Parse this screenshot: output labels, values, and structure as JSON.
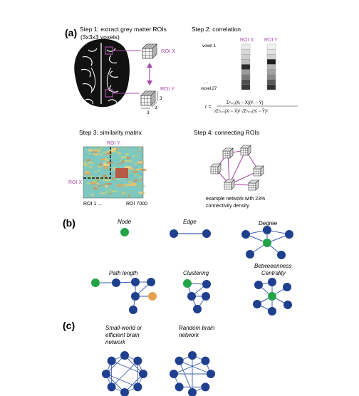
{
  "panels": {
    "a": "(a)",
    "b": "(b)",
    "c": "(c)"
  },
  "step1": {
    "title": "Step 1: extract grey matter ROIs",
    "subtitle": "(3x3x3 voxels)",
    "roi_x": "ROI X",
    "roi_y": "ROI Y",
    "dim_a": "3",
    "dim_b": "3",
    "dim_c": "3"
  },
  "step2": {
    "title": "Step 2: correlation",
    "roi_x": "ROI X",
    "roi_y": "ROI Y",
    "voxel_first": "voxel 1",
    "ellipsis": "...",
    "voxel_last": "voxel 27",
    "formula_lhs": "r =",
    "formula_num": "Σⁿᵢ₌₁(Xᵢ − X̄)(Yᵢ − Ȳ)",
    "formula_den": "√Σⁿᵢ₌₁(Xᵢ − X̄)² √Σⁿᵢ₌₁(Yᵢ − Ȳ)²",
    "colors": {
      "roi_label": "#a64ca6",
      "bar_x": [
        "#ececec",
        "#d9d9d9",
        "#cfcfcf",
        "#bdbdbd",
        "#2a2a2a",
        "#9a9a9a",
        "#7a7a7a",
        "#4f4f4f",
        "#3a3a3a"
      ],
      "bar_y": [
        "#f2f2f2",
        "#e2e2e2",
        "#d0d0d0",
        "#1f1f1f",
        "#b5b5b5",
        "#a0a0a0",
        "#8a8a8a",
        "#5a5a5a",
        "#333333"
      ]
    }
  },
  "step3": {
    "title": "Step 3: similarity matrix",
    "roi_y": "ROI Y",
    "roi_x": "ROI X",
    "axis_start": "ROI 1 ...",
    "axis_end": "ROI 7000"
  },
  "step4": {
    "title": "Step 4: connecting ROIs",
    "caption_line1": "example network with 23%",
    "caption_line2": "connectivity density"
  },
  "section_b": {
    "node": "Node",
    "edge": "Edge",
    "degree": "Degree",
    "path_length": "Path length",
    "clustering": "Clustering",
    "betweenness_line1": "Betweeenness",
    "betweenness_line2": "Centrality"
  },
  "section_c": {
    "small_world_line1": "Small-world or",
    "small_world_line2": "efficient brain",
    "small_world_line3": "network",
    "random_line1": "Random brain",
    "random_line2": "network"
  },
  "colors": {
    "node_blue": "#1f3f8f",
    "node_green": "#22a447",
    "node_orange": "#e8a050",
    "edge_purple": "#a64ca6",
    "edge_blue": "#3b5cb0"
  }
}
